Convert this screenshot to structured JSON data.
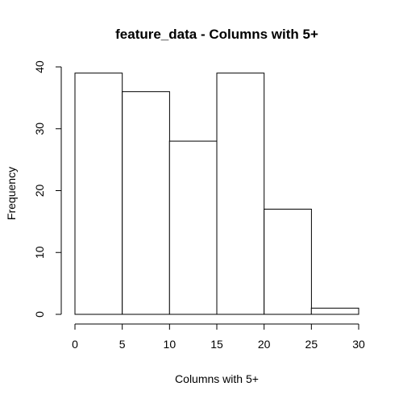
{
  "chart_data": {
    "type": "bar",
    "title": "feature_data - Columns with 5+",
    "xlabel": "Columns with 5+",
    "ylabel": "Frequency",
    "bins": [
      {
        "start": 0,
        "end": 5,
        "count": 39
      },
      {
        "start": 5,
        "end": 10,
        "count": 36
      },
      {
        "start": 10,
        "end": 15,
        "count": 28
      },
      {
        "start": 15,
        "end": 20,
        "count": 39
      },
      {
        "start": 20,
        "end": 25,
        "count": 17
      },
      {
        "start": 25,
        "end": 30,
        "count": 1
      }
    ],
    "xlim": [
      0,
      30
    ],
    "ylim": [
      0,
      40
    ],
    "x_ticks": [
      0,
      5,
      10,
      15,
      20,
      25,
      30
    ],
    "y_ticks": [
      0,
      10,
      20,
      30,
      40
    ],
    "grid": false,
    "bar_fill": "#ffffff",
    "bar_stroke": "#000000"
  }
}
